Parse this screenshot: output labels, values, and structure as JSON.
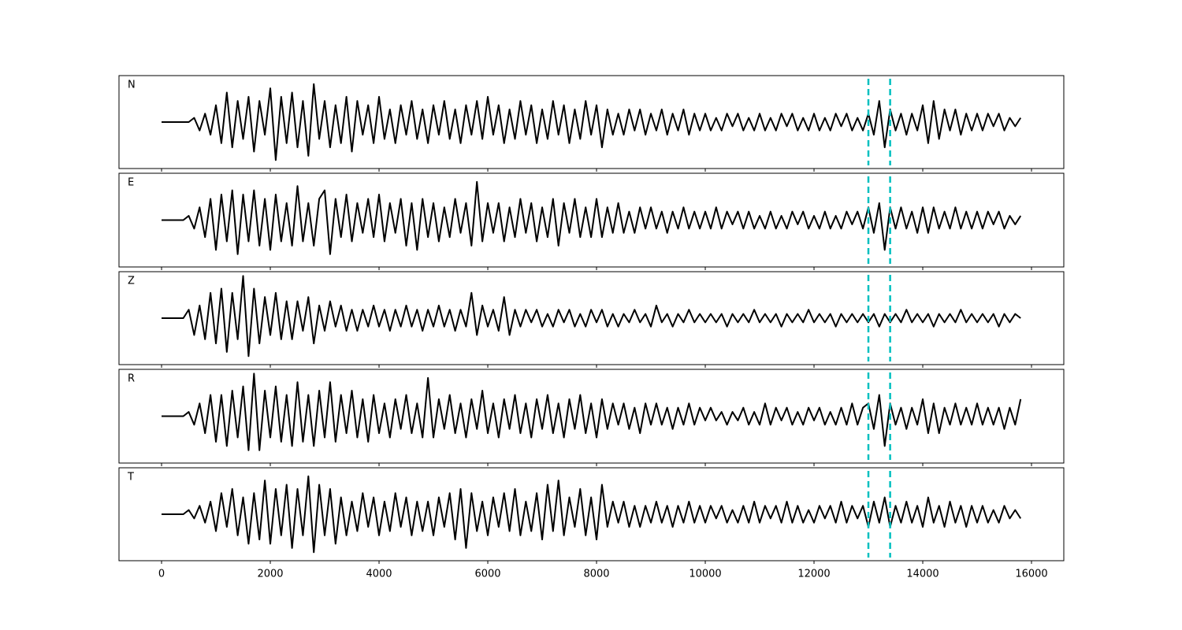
{
  "chart_data": {
    "type": "line",
    "x": [
      0,
      100,
      200,
      300,
      400,
      500,
      600,
      700,
      800,
      900,
      1000,
      1100,
      1200,
      1300,
      1400,
      1500,
      1600,
      1700,
      1800,
      1900,
      2000,
      2100,
      2200,
      2300,
      2400,
      2500,
      2600,
      2700,
      2800,
      2900,
      3000,
      3100,
      3200,
      3300,
      3400,
      3500,
      3600,
      3700,
      3800,
      3900,
      4000,
      4100,
      4200,
      4300,
      4400,
      4500,
      4600,
      4700,
      4800,
      4900,
      5000,
      5100,
      5200,
      5300,
      5400,
      5500,
      5600,
      5700,
      5800,
      5900,
      6000,
      6100,
      6200,
      6300,
      6400,
      6500,
      6600,
      6700,
      6800,
      6900,
      7000,
      7100,
      7200,
      7300,
      7400,
      7500,
      7600,
      7700,
      7800,
      7900,
      8000,
      8100,
      8200,
      8300,
      8400,
      8500,
      8600,
      8700,
      8800,
      8900,
      9000,
      9100,
      9200,
      9300,
      9400,
      9500,
      9600,
      9700,
      9800,
      9900,
      10000,
      10100,
      10200,
      10300,
      10400,
      10500,
      10600,
      10700,
      10800,
      10900,
      11000,
      11100,
      11200,
      11300,
      11400,
      11500,
      11600,
      11700,
      11800,
      11900,
      12000,
      12100,
      12200,
      12300,
      12400,
      12500,
      12600,
      12700,
      12800,
      12900,
      13000,
      13100,
      13200,
      13300,
      13400,
      13500,
      13600,
      13700,
      13800,
      13900,
      14000,
      14100,
      14200,
      14300,
      14400,
      14500,
      14600,
      14700,
      14800,
      14900,
      15000,
      15100,
      15200,
      15300,
      15400,
      15500,
      15600,
      15700,
      15800
    ],
    "xlim": [
      -783,
      16594
    ],
    "xticks": [
      0,
      2000,
      4000,
      6000,
      8000,
      10000,
      12000,
      14000,
      16000
    ],
    "ylim": [
      -11,
      11
    ],
    "vlines": [
      13000,
      13400
    ],
    "vline_color": "#00bfbf",
    "series": [
      {
        "name": "N",
        "color": "#000000",
        "values": [
          0,
          0,
          0,
          0,
          0,
          0,
          1,
          -2,
          2,
          -3,
          4,
          -5,
          7,
          -6,
          5,
          -4,
          6,
          -7,
          5,
          -3,
          8,
          -9,
          6,
          -5,
          7,
          -6,
          5,
          -8,
          9,
          -4,
          5,
          -6,
          4,
          -5,
          6,
          -7,
          5,
          -3,
          4,
          -5,
          6,
          -4,
          3,
          -5,
          4,
          -3,
          5,
          -4,
          3,
          -5,
          4,
          -3,
          5,
          -4,
          3,
          -5,
          4,
          -3,
          5,
          -4,
          6,
          -3,
          4,
          -5,
          3,
          -4,
          5,
          -3,
          4,
          -5,
          3,
          -4,
          5,
          -3,
          4,
          -5,
          3,
          -4,
          5,
          -3,
          4,
          -6,
          3,
          -3,
          2,
          -3,
          3,
          -2,
          3,
          -3,
          2,
          -2,
          3,
          -3,
          2,
          -2,
          3,
          -3,
          2,
          -2,
          2,
          -2,
          1,
          -2,
          2,
          -1,
          2,
          -2,
          1,
          -2,
          2,
          -2,
          1,
          -2,
          2,
          -1,
          2,
          -2,
          1,
          -2,
          2,
          -2,
          1,
          -2,
          2,
          -1,
          2,
          -2,
          1,
          -2,
          2,
          -3,
          5,
          -6,
          3,
          -2,
          2,
          -3,
          2,
          -2,
          4,
          -5,
          5,
          -4,
          3,
          -2,
          3,
          -3,
          2,
          -2,
          2,
          -2,
          2,
          -1,
          2,
          -2,
          1,
          -1,
          1
        ]
      },
      {
        "name": "E",
        "color": "#000000",
        "values": [
          0,
          0,
          0,
          0,
          0,
          1,
          -2,
          3,
          -4,
          5,
          -7,
          6,
          -5,
          7,
          -8,
          6,
          -5,
          7,
          -6,
          5,
          -7,
          6,
          -5,
          4,
          -6,
          8,
          -5,
          4,
          -6,
          5,
          7,
          -8,
          5,
          -4,
          6,
          -5,
          4,
          -3,
          5,
          -4,
          6,
          -5,
          4,
          -3,
          5,
          -6,
          4,
          -7,
          5,
          -4,
          4,
          -5,
          3,
          -4,
          5,
          -3,
          4,
          -6,
          9,
          -5,
          4,
          -3,
          4,
          -5,
          3,
          -4,
          5,
          -3,
          4,
          -5,
          3,
          -4,
          5,
          -6,
          4,
          -3,
          5,
          -4,
          3,
          -4,
          5,
          -4,
          3,
          -3,
          4,
          -3,
          2,
          -3,
          3,
          -2,
          3,
          -2,
          2,
          -3,
          2,
          -2,
          3,
          -2,
          2,
          -2,
          2,
          -2,
          3,
          -2,
          2,
          -1,
          2,
          -2,
          2,
          -2,
          1,
          -2,
          2,
          -2,
          1,
          -2,
          2,
          -1,
          2,
          -2,
          1,
          -2,
          2,
          -2,
          1,
          -2,
          2,
          -1,
          2,
          -2,
          3,
          -3,
          4,
          -7,
          3,
          -2,
          3,
          -2,
          2,
          -3,
          3,
          -3,
          3,
          -2,
          2,
          -2,
          3,
          -2,
          2,
          -2,
          2,
          -2,
          2,
          -1,
          2,
          -2,
          1,
          -1,
          1
        ]
      },
      {
        "name": "Z",
        "color": "#000000",
        "values": [
          0,
          0,
          0,
          0,
          0,
          2,
          -4,
          3,
          -5,
          6,
          -6,
          7,
          -8,
          6,
          -5,
          10,
          -9,
          7,
          -6,
          5,
          -4,
          6,
          -5,
          4,
          -5,
          4,
          -3,
          5,
          -6,
          3,
          -3,
          4,
          -2,
          3,
          -3,
          2,
          -3,
          2,
          -2,
          3,
          -2,
          2,
          -3,
          2,
          -2,
          3,
          -2,
          2,
          -3,
          2,
          -2,
          3,
          -2,
          2,
          -3,
          2,
          -2,
          6,
          -4,
          3,
          -2,
          2,
          -3,
          5,
          -4,
          2,
          -2,
          2,
          -1,
          2,
          -2,
          1,
          -2,
          2,
          -1,
          2,
          -2,
          1,
          -2,
          2,
          -1,
          2,
          -2,
          1,
          -2,
          1,
          -1,
          2,
          -1,
          1,
          -2,
          3,
          -1,
          1,
          -2,
          1,
          -1,
          2,
          -1,
          1,
          -1,
          1,
          -1,
          1,
          -2,
          1,
          -1,
          1,
          -1,
          2,
          -1,
          1,
          -1,
          1,
          -2,
          1,
          -1,
          1,
          -1,
          2,
          -1,
          1,
          -1,
          1,
          -2,
          1,
          -1,
          1,
          -1,
          1,
          -1,
          1,
          -2,
          1,
          -1,
          1,
          -1,
          2,
          -1,
          1,
          -1,
          1,
          -2,
          1,
          -1,
          1,
          -1,
          2,
          -1,
          1,
          -1,
          1,
          -1,
          1,
          -2,
          1,
          -1,
          1,
          0
        ]
      },
      {
        "name": "R",
        "color": "#000000",
        "values": [
          0,
          0,
          0,
          0,
          0,
          1,
          -2,
          3,
          -4,
          5,
          -6,
          5,
          -7,
          6,
          -5,
          7,
          -8,
          10,
          -8,
          6,
          -5,
          7,
          -6,
          5,
          -7,
          8,
          -6,
          5,
          -7,
          6,
          -5,
          8,
          -6,
          5,
          -4,
          6,
          -5,
          4,
          -6,
          5,
          -4,
          3,
          -5,
          4,
          -3,
          5,
          -4,
          3,
          -5,
          9,
          -5,
          4,
          -3,
          5,
          -4,
          3,
          -5,
          4,
          -3,
          6,
          -4,
          3,
          -5,
          4,
          -3,
          5,
          -4,
          3,
          -5,
          4,
          -3,
          5,
          -4,
          3,
          -5,
          4,
          -3,
          5,
          -4,
          3,
          -5,
          4,
          -3,
          3,
          -2,
          3,
          -3,
          2,
          -4,
          3,
          -2,
          3,
          -2,
          2,
          -3,
          2,
          -2,
          3,
          -2,
          2,
          -1,
          2,
          -1,
          1,
          -2,
          1,
          -1,
          2,
          -2,
          1,
          -2,
          3,
          -2,
          2,
          -1,
          2,
          -2,
          1,
          -2,
          2,
          -1,
          2,
          -2,
          1,
          -2,
          2,
          -2,
          3,
          -2,
          2,
          3,
          -3,
          5,
          -7,
          3,
          -2,
          2,
          -3,
          2,
          -2,
          4,
          -4,
          3,
          -4,
          2,
          -2,
          3,
          -2,
          2,
          -2,
          3,
          -2,
          2,
          -2,
          2,
          -3,
          2,
          -2,
          4
        ]
      },
      {
        "name": "T",
        "color": "#000000",
        "values": [
          0,
          0,
          0,
          0,
          0,
          1,
          -1,
          2,
          -2,
          3,
          -4,
          5,
          -3,
          6,
          -5,
          4,
          -7,
          5,
          -6,
          8,
          -7,
          6,
          -5,
          7,
          -8,
          6,
          -5,
          9,
          -9,
          7,
          -5,
          6,
          -7,
          4,
          -5,
          3,
          -4,
          5,
          -3,
          4,
          -5,
          3,
          -4,
          5,
          -3,
          4,
          -5,
          3,
          -4,
          3,
          -5,
          4,
          -3,
          5,
          -6,
          6,
          -8,
          5,
          -4,
          3,
          -5,
          4,
          -3,
          5,
          -4,
          6,
          -5,
          3,
          -4,
          5,
          -6,
          7,
          -4,
          8,
          -5,
          4,
          -3,
          6,
          -5,
          4,
          -6,
          7,
          -3,
          3,
          -2,
          3,
          -3,
          2,
          -3,
          2,
          -2,
          3,
          -2,
          2,
          -3,
          2,
          -2,
          3,
          -2,
          2,
          -2,
          2,
          -1,
          2,
          -2,
          1,
          -2,
          2,
          -2,
          3,
          -2,
          2,
          -1,
          2,
          -2,
          3,
          -2,
          2,
          -2,
          1,
          -2,
          2,
          -1,
          2,
          -2,
          3,
          -2,
          2,
          -1,
          2,
          -3,
          3,
          -2,
          4,
          -3,
          2,
          -2,
          3,
          -2,
          2,
          -3,
          4,
          -2,
          2,
          -3,
          3,
          -2,
          2,
          -3,
          2,
          -2,
          2,
          -2,
          1,
          -2,
          2,
          -1,
          1,
          -1
        ]
      }
    ]
  }
}
